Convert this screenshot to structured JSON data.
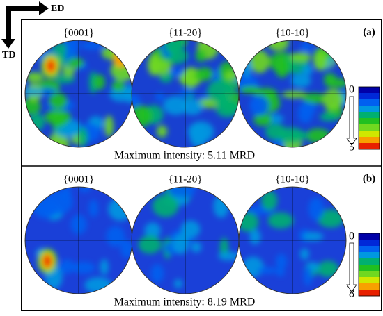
{
  "axes": {
    "x": "ED",
    "y": "TD"
  },
  "panels": [
    {
      "label": "(a)",
      "figures": [
        "{0001}",
        "{11-20}",
        "{10-10}"
      ],
      "scale": {
        "min": "0",
        "max": "5"
      },
      "caption": "Maximum intensity: 5.11 MRD"
    },
    {
      "label": "(b)",
      "figures": [
        "{0001}",
        "{11-20}",
        "{10-10}"
      ],
      "scale": {
        "min": "0",
        "max": "8"
      },
      "caption": "Maximum intensity: 8.19 MRD"
    }
  ]
}
